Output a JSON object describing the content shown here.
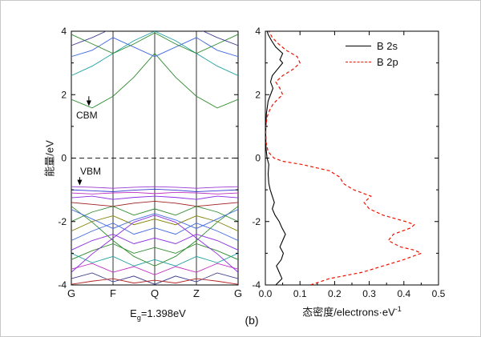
{
  "figure": {
    "panel_label": "(b)",
    "eg": {
      "symbol": "E",
      "sub": "g",
      "rest": "=1.398eV"
    }
  },
  "chart_data": [
    {
      "type": "line",
      "name": "band-structure",
      "title": "",
      "ylabel": "能量/eV",
      "ylim": [
        -4,
        4
      ],
      "yticks": [
        "4",
        "2",
        "0",
        "-2",
        "-4"
      ],
      "yticks_minor": [
        3,
        1,
        -1,
        -3
      ],
      "xticklabels": [
        "G",
        "F",
        "Q",
        "Z",
        "G"
      ],
      "fermi_level": 0,
      "band_gap_eV": 1.398,
      "annotations": [
        {
          "text": "CBM",
          "arrow": {
            "k": 0.105,
            "e_from": 1.95,
            "e_to": 1.64
          }
        },
        {
          "text": "VBM",
          "arrow": {
            "k": 0.05,
            "e_from": -0.6,
            "e_to": -0.86
          }
        }
      ],
      "bands": [
        {
          "color": "#2e8b2e",
          "y": [
            1.85,
            1.58,
            1.95,
            2.55,
            3.3,
            2.55,
            1.95,
            1.58,
            1.85
          ]
        },
        {
          "color": "#20a0a0",
          "y": [
            2.6,
            2.9,
            3.3,
            3.7,
            4.0,
            3.7,
            3.3,
            2.9,
            2.6
          ]
        },
        {
          "color": "#4169e1",
          "y": [
            3.2,
            3.4,
            3.8,
            3.5,
            3.2,
            3.5,
            3.8,
            3.4,
            3.2
          ]
        },
        {
          "color": "#2e8b2e",
          "y": [
            3.9,
            3.6,
            3.3,
            3.6,
            3.95,
            3.6,
            3.3,
            3.6,
            3.9
          ]
        },
        {
          "color": "#404090",
          "y": [
            3.55,
            3.8,
            4.1,
            4.3,
            4.5,
            4.3,
            4.1,
            3.8,
            3.55
          ]
        },
        {
          "color": "#9a3bd2",
          "y": [
            -0.9,
            -0.92,
            -0.95,
            -0.92,
            -0.9,
            -0.92,
            -0.95,
            -0.92,
            -0.9
          ]
        },
        {
          "color": "#3b3bd2",
          "y": [
            -1.0,
            -1.03,
            -1.06,
            -1.01,
            -0.98,
            -1.01,
            -1.06,
            -1.03,
            -1.0
          ]
        },
        {
          "color": "#c030c0",
          "y": [
            -1.1,
            -1.13,
            -1.1,
            -1.08,
            -1.12,
            -1.08,
            -1.1,
            -1.13,
            -1.1
          ]
        },
        {
          "color": "#8a2be2",
          "y": [
            -1.25,
            -1.2,
            -1.3,
            -1.24,
            -1.2,
            -1.24,
            -1.3,
            -1.2,
            -1.25
          ]
        },
        {
          "color": "#a02020",
          "y": [
            -1.4,
            -1.46,
            -1.52,
            -1.42,
            -1.36,
            -1.42,
            -1.52,
            -1.46,
            -1.4
          ]
        },
        {
          "color": "#2e8b2e",
          "y": [
            -2.0,
            -1.7,
            -1.52,
            -1.8,
            -1.6,
            -1.8,
            -1.52,
            -1.7,
            -2.0
          ]
        },
        {
          "color": "#808000",
          "y": [
            -2.3,
            -2.0,
            -1.82,
            -2.1,
            -1.92,
            -2.1,
            -1.82,
            -2.0,
            -2.3
          ]
        },
        {
          "color": "#4169e1",
          "y": [
            -2.6,
            -2.3,
            -2.05,
            -2.4,
            -2.2,
            -2.4,
            -2.05,
            -2.3,
            -2.6
          ]
        },
        {
          "color": "#8a2be2",
          "y": [
            -2.9,
            -2.6,
            -2.4,
            -2.7,
            -2.52,
            -2.7,
            -2.4,
            -2.6,
            -2.9
          ]
        },
        {
          "color": "#2e8b2e",
          "y": [
            -3.2,
            -2.92,
            -2.7,
            -3.0,
            -2.82,
            -3.0,
            -2.7,
            -2.92,
            -3.2
          ]
        },
        {
          "color": "#20a0a0",
          "y": [
            -3.0,
            -3.3,
            -3.1,
            -3.4,
            -3.2,
            -3.4,
            -3.1,
            -3.3,
            -3.0
          ]
        },
        {
          "color": "#c030c0",
          "y": [
            -3.5,
            -3.32,
            -3.6,
            -3.42,
            -3.68,
            -3.42,
            -3.6,
            -3.32,
            -3.5
          ]
        },
        {
          "color": "#404090",
          "y": [
            -3.8,
            -3.62,
            -3.9,
            -3.72,
            -3.98,
            -3.72,
            -3.9,
            -3.62,
            -3.8
          ]
        },
        {
          "color": "#b22222",
          "y": [
            -3.98,
            -3.88,
            -3.8,
            -3.94,
            -3.85,
            -3.94,
            -3.8,
            -3.88,
            -3.98
          ]
        },
        {
          "color": "#2e8b2e",
          "y": [
            -1.52,
            -2.02,
            -2.6,
            -3.1,
            -3.4,
            -3.1,
            -2.6,
            -2.02,
            -1.52
          ]
        },
        {
          "color": "#8a2be2",
          "y": [
            -3.6,
            -3.02,
            -2.52,
            -2.02,
            -1.8,
            -2.02,
            -2.52,
            -3.02,
            -3.6
          ]
        },
        {
          "color": "#4169e1",
          "y": [
            -1.62,
            -1.92,
            -2.22,
            -1.95,
            -1.75,
            -1.95,
            -2.22,
            -1.92,
            -1.62
          ]
        }
      ]
    },
    {
      "type": "line",
      "name": "density-of-states",
      "title": "",
      "xlabel": "态密度/electrons·eV",
      "xlabel_sup": "-1",
      "xlim": [
        0,
        0.5
      ],
      "xticks": [
        "0.0",
        "0.1",
        "0.2",
        "0.3",
        "0.4",
        "0.5"
      ],
      "ylim": [
        -4,
        4
      ],
      "yticks": [
        "4",
        "2",
        "0",
        "-2",
        "-4"
      ],
      "yticks_minor": [
        3,
        1,
        -1,
        -3
      ],
      "legend_position": "top-right",
      "legend": [
        {
          "label": "B 2s",
          "color": "#000000",
          "style": "solid"
        },
        {
          "label": "B 2p",
          "color": "#ee1100",
          "style": "dashed"
        }
      ],
      "series": [
        {
          "name": "B 2s",
          "points": [
            [
              -4.0,
              0.03
            ],
            [
              -3.8,
              0.048
            ],
            [
              -3.6,
              0.04
            ],
            [
              -3.4,
              0.032
            ],
            [
              -3.2,
              0.046
            ],
            [
              -3.0,
              0.052
            ],
            [
              -2.8,
              0.042
            ],
            [
              -2.6,
              0.05
            ],
            [
              -2.4,
              0.058
            ],
            [
              -2.2,
              0.048
            ],
            [
              -2.0,
              0.04
            ],
            [
              -1.8,
              0.028
            ],
            [
              -1.6,
              0.02
            ],
            [
              -1.4,
              0.026
            ],
            [
              -1.2,
              0.02
            ],
            [
              -1.0,
              0.014
            ],
            [
              -0.8,
              0.01
            ],
            [
              -0.5,
              0.008
            ],
            [
              -0.2,
              0.01
            ],
            [
              0.0,
              0.005
            ],
            [
              0.3,
              0.002
            ],
            [
              0.8,
              0.001
            ],
            [
              1.4,
              0.003
            ],
            [
              1.8,
              0.008
            ],
            [
              2.0,
              0.015
            ],
            [
              2.2,
              0.022
            ],
            [
              2.4,
              0.015
            ],
            [
              2.6,
              0.02
            ],
            [
              2.8,
              0.035
            ],
            [
              3.0,
              0.05
            ],
            [
              3.1,
              0.042
            ],
            [
              3.3,
              0.05
            ],
            [
              3.5,
              0.03
            ],
            [
              3.7,
              0.018
            ],
            [
              3.9,
              0.008
            ],
            [
              4.0,
              0.005
            ]
          ]
        },
        {
          "name": "B 2p",
          "points": [
            [
              -4.0,
              0.13
            ],
            [
              -3.8,
              0.185
            ],
            [
              -3.6,
              0.28
            ],
            [
              -3.4,
              0.34
            ],
            [
              -3.2,
              0.4
            ],
            [
              -3.0,
              0.45
            ],
            [
              -2.9,
              0.43
            ],
            [
              -2.8,
              0.39
            ],
            [
              -2.6,
              0.355
            ],
            [
              -2.4,
              0.37
            ],
            [
              -2.2,
              0.42
            ],
            [
              -2.1,
              0.43
            ],
            [
              -2.0,
              0.405
            ],
            [
              -1.8,
              0.34
            ],
            [
              -1.6,
              0.3
            ],
            [
              -1.4,
              0.285
            ],
            [
              -1.2,
              0.305
            ],
            [
              -1.0,
              0.255
            ],
            [
              -0.8,
              0.225
            ],
            [
              -0.6,
              0.215
            ],
            [
              -0.4,
              0.185
            ],
            [
              -0.2,
              0.105
            ],
            [
              -0.1,
              0.05
            ],
            [
              0.0,
              0.025
            ],
            [
              0.2,
              0.008
            ],
            [
              0.5,
              0.002
            ],
            [
              1.0,
              0.001
            ],
            [
              1.3,
              0.005
            ],
            [
              1.5,
              0.012
            ],
            [
              1.7,
              0.022
            ],
            [
              1.9,
              0.04
            ],
            [
              2.0,
              0.05
            ],
            [
              2.2,
              0.042
            ],
            [
              2.4,
              0.03
            ],
            [
              2.6,
              0.05
            ],
            [
              2.8,
              0.08
            ],
            [
              3.0,
              0.1
            ],
            [
              3.2,
              0.092
            ],
            [
              3.4,
              0.06
            ],
            [
              3.6,
              0.038
            ],
            [
              3.8,
              0.02
            ],
            [
              4.0,
              0.01
            ]
          ]
        }
      ]
    }
  ]
}
